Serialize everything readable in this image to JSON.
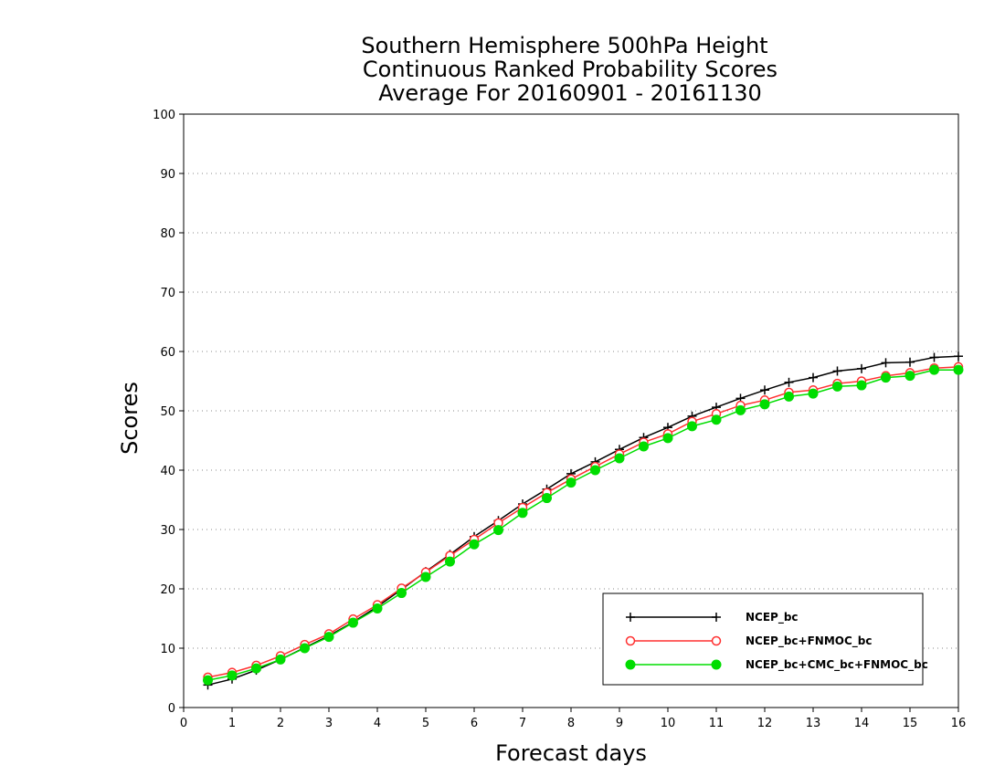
{
  "chart_data": {
    "type": "line",
    "title": "Southern Hemisphere 500hPa Height",
    "title_lines": [
      "Southern Hemisphere 500hPa Height",
      "Continuous Ranked Probability Scores",
      "Average For 20160901 - 20161130"
    ],
    "xlabel": "Forecast days",
    "ylabel": "Scores",
    "xlim": [
      0,
      16
    ],
    "ylim": [
      0,
      100
    ],
    "xticks": [
      "0",
      "1",
      "2",
      "3",
      "4",
      "5",
      "6",
      "7",
      "8",
      "9",
      "10",
      "11",
      "12",
      "13",
      "14",
      "15",
      "16"
    ],
    "yticks": [
      "0",
      "10",
      "20",
      "30",
      "40",
      "50",
      "60",
      "70",
      "80",
      "90",
      "100"
    ],
    "grid": "horizontal dotted",
    "legend_position": "bottom-right",
    "x": [
      0.5,
      1.0,
      1.5,
      2.0,
      2.5,
      3.0,
      3.5,
      4.0,
      4.5,
      5.0,
      5.5,
      6.0,
      6.5,
      7.0,
      7.5,
      8.0,
      8.5,
      9.0,
      9.5,
      10.0,
      10.5,
      11.0,
      11.5,
      12.0,
      12.5,
      13.0,
      13.5,
      14.0,
      14.5,
      15.0,
      15.5,
      16.0
    ],
    "series": [
      {
        "name": "NCEP_bc",
        "color": "#000000",
        "marker": "plus",
        "values": [
          3.8,
          4.8,
          6.3,
          8.1,
          10.1,
          12.1,
          14.4,
          17.0,
          19.9,
          22.9,
          25.8,
          28.8,
          31.5,
          34.3,
          36.8,
          39.4,
          41.4,
          43.5,
          45.5,
          47.2,
          49.1,
          50.6,
          52.1,
          53.5,
          54.8,
          55.6,
          56.7,
          57.1,
          58.1,
          58.2,
          59.0,
          59.2
        ]
      },
      {
        "name": "NCEP_bc+FNMOC_bc",
        "color": "#ff3030",
        "marker": "open-circle",
        "values": [
          5.1,
          5.9,
          7.1,
          8.7,
          10.6,
          12.4,
          14.9,
          17.3,
          20.1,
          22.8,
          25.6,
          28.3,
          31.1,
          33.7,
          36.2,
          38.5,
          40.6,
          42.7,
          44.7,
          46.1,
          48.2,
          49.5,
          50.9,
          51.8,
          53.1,
          53.5,
          54.6,
          55.0,
          55.9,
          56.4,
          57.2,
          57.4
        ]
      },
      {
        "name": "NCEP_bc+CMC_bc+FNMOC_bc",
        "color": "#00dd00",
        "marker": "filled-circle",
        "values": [
          4.6,
          5.4,
          6.6,
          8.1,
          10.0,
          11.9,
          14.3,
          16.7,
          19.3,
          22.0,
          24.6,
          27.5,
          29.9,
          32.8,
          35.3,
          37.9,
          40.0,
          42.0,
          44.0,
          45.4,
          47.4,
          48.5,
          50.1,
          51.1,
          52.4,
          52.9,
          54.1,
          54.3,
          55.6,
          55.9,
          56.9,
          56.9
        ]
      }
    ]
  }
}
